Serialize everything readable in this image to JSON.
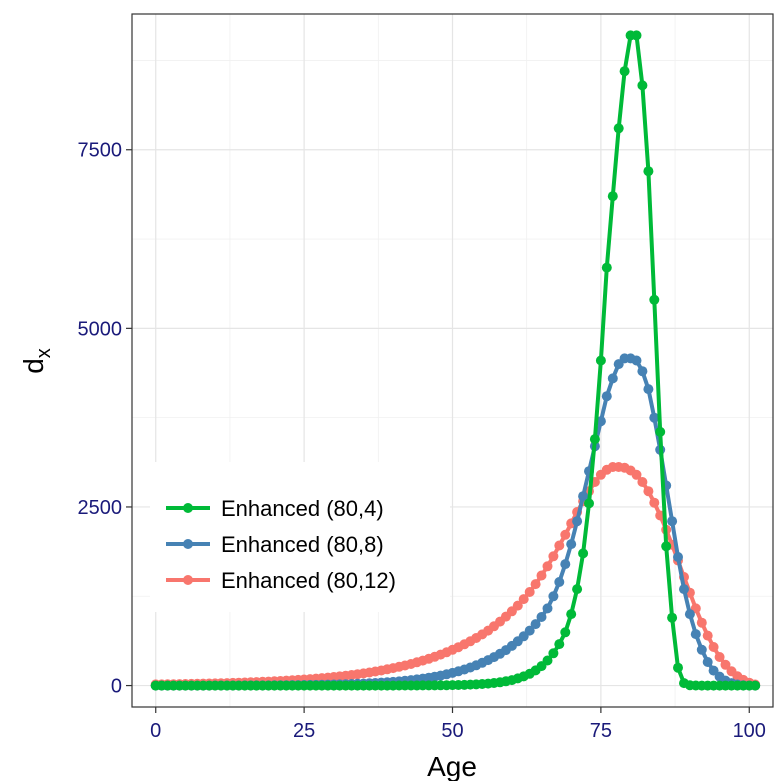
{
  "chart_data": {
    "type": "line",
    "xlabel": "Age",
    "ylabel": "d",
    "ylabel_subscript": "x",
    "xlim": [
      -4,
      104
    ],
    "ylim": [
      -300,
      9400
    ],
    "x_ticks": [
      0,
      25,
      50,
      75,
      100
    ],
    "x_tick_labels": [
      "0",
      "25",
      "50",
      "75",
      "100"
    ],
    "y_ticks": [
      0,
      2500,
      5000,
      7500
    ],
    "y_tick_labels": [
      "0",
      "2500",
      "5000",
      "7500"
    ],
    "grid": true,
    "legend_position": "bottom-left",
    "tick_label_color": "#1a1a7a",
    "series": [
      {
        "name": "Enhanced (80,4)",
        "color": "#00BA38",
        "mean": 80,
        "sd": 4,
        "x": [
          0,
          1,
          2,
          3,
          4,
          5,
          6,
          7,
          8,
          9,
          10,
          11,
          12,
          13,
          14,
          15,
          16,
          17,
          18,
          19,
          20,
          21,
          22,
          23,
          24,
          25,
          26,
          27,
          28,
          29,
          30,
          31,
          32,
          33,
          34,
          35,
          36,
          37,
          38,
          39,
          40,
          41,
          42,
          43,
          44,
          45,
          46,
          47,
          48,
          49,
          50,
          51,
          52,
          53,
          54,
          55,
          56,
          57,
          58,
          59,
          60,
          61,
          62,
          63,
          64,
          65,
          66,
          67,
          68,
          69,
          70,
          71,
          72,
          73,
          74,
          75,
          76,
          77,
          78,
          79,
          80,
          81,
          82,
          83,
          84,
          85,
          86,
          87,
          88,
          89,
          90,
          91,
          92,
          93,
          94,
          95,
          96,
          97,
          98,
          99,
          100,
          101
        ],
        "y": [
          0,
          0,
          0,
          0,
          0,
          0,
          0,
          0,
          0,
          0,
          0,
          0,
          0,
          0,
          0,
          0,
          0,
          0,
          0,
          0,
          0,
          0,
          0,
          0,
          0,
          0,
          0,
          0,
          0,
          0,
          0,
          0,
          0,
          0,
          0,
          0,
          0,
          0,
          0,
          0,
          0,
          1,
          1,
          1,
          1,
          2,
          2,
          3,
          4,
          5,
          6,
          8,
          10,
          13,
          17,
          22,
          28,
          36,
          46,
          60,
          77,
          100,
          128,
          165,
          212,
          273,
          351,
          452,
          580,
          745,
          1000,
          1350,
          1850,
          2550,
          3450,
          4550,
          5850,
          6850,
          7800,
          8600,
          9100,
          9100,
          8400,
          7200,
          5400,
          3550,
          1950,
          950,
          250,
          35,
          5,
          1,
          0,
          0,
          0,
          0,
          0,
          0,
          0,
          0,
          0,
          0
        ]
      },
      {
        "name": "Enhanced (80,8)",
        "color": "#4682B4",
        "mean": 80,
        "sd": 8,
        "x": [
          0,
          1,
          2,
          3,
          4,
          5,
          6,
          7,
          8,
          9,
          10,
          11,
          12,
          13,
          14,
          15,
          16,
          17,
          18,
          19,
          20,
          21,
          22,
          23,
          24,
          25,
          26,
          27,
          28,
          29,
          30,
          31,
          32,
          33,
          34,
          35,
          36,
          37,
          38,
          39,
          40,
          41,
          42,
          43,
          44,
          45,
          46,
          47,
          48,
          49,
          50,
          51,
          52,
          53,
          54,
          55,
          56,
          57,
          58,
          59,
          60,
          61,
          62,
          63,
          64,
          65,
          66,
          67,
          68,
          69,
          70,
          71,
          72,
          73,
          74,
          75,
          76,
          77,
          78,
          79,
          80,
          81,
          82,
          83,
          84,
          85,
          86,
          87,
          88,
          89,
          90,
          91,
          92,
          93,
          94,
          95,
          96,
          97,
          98,
          99,
          100,
          101
        ],
        "y": [
          0,
          0,
          0,
          0,
          0,
          0,
          0,
          0,
          0,
          0,
          1,
          1,
          1,
          1,
          1,
          2,
          2,
          2,
          3,
          3,
          4,
          4,
          5,
          6,
          7,
          8,
          9,
          10,
          12,
          13,
          15,
          17,
          19,
          22,
          25,
          28,
          32,
          36,
          41,
          46,
          52,
          59,
          67,
          76,
          86,
          97,
          110,
          124,
          140,
          158,
          178,
          200,
          225,
          253,
          284,
          318,
          356,
          398,
          445,
          497,
          555,
          620,
          690,
          770,
          860,
          960,
          1080,
          1250,
          1450,
          1700,
          1980,
          2300,
          2650,
          3000,
          3350,
          3700,
          4050,
          4300,
          4500,
          4580,
          4580,
          4550,
          4400,
          4150,
          3750,
          3300,
          2800,
          2300,
          1800,
          1350,
          1000,
          720,
          500,
          330,
          210,
          125,
          70,
          35,
          15,
          5,
          1,
          0
        ]
      },
      {
        "name": "Enhanced (80,12)",
        "color": "#F8766D",
        "mean": 80,
        "sd": 12,
        "x": [
          0,
          1,
          2,
          3,
          4,
          5,
          6,
          7,
          8,
          9,
          10,
          11,
          12,
          13,
          14,
          15,
          16,
          17,
          18,
          19,
          20,
          21,
          22,
          23,
          24,
          25,
          26,
          27,
          28,
          29,
          30,
          31,
          32,
          33,
          34,
          35,
          36,
          37,
          38,
          39,
          40,
          41,
          42,
          43,
          44,
          45,
          46,
          47,
          48,
          49,
          50,
          51,
          52,
          53,
          54,
          55,
          56,
          57,
          58,
          59,
          60,
          61,
          62,
          63,
          64,
          65,
          66,
          67,
          68,
          69,
          70,
          71,
          72,
          73,
          74,
          75,
          76,
          77,
          78,
          79,
          80,
          81,
          82,
          83,
          84,
          85,
          86,
          87,
          88,
          89,
          90,
          91,
          92,
          93,
          94,
          95,
          96,
          97,
          98,
          99,
          100,
          101
        ],
        "y": [
          16,
          17,
          18,
          19,
          21,
          22,
          24,
          25,
          27,
          29,
          31,
          33,
          35,
          38,
          40,
          43,
          46,
          49,
          53,
          56,
          60,
          64,
          69,
          74,
          79,
          85,
          91,
          97,
          104,
          112,
          120,
          129,
          138,
          148,
          159,
          171,
          183,
          197,
          211,
          227,
          244,
          262,
          281,
          302,
          325,
          349,
          375,
          403,
          433,
          466,
          500,
          537,
          577,
          620,
          666,
          716,
          770,
          830,
          895,
          965,
          1040,
          1120,
          1210,
          1310,
          1420,
          1540,
          1670,
          1810,
          1960,
          2110,
          2270,
          2430,
          2580,
          2720,
          2850,
          2950,
          3020,
          3060,
          3060,
          3050,
          3010,
          2950,
          2850,
          2720,
          2560,
          2380,
          2180,
          1970,
          1750,
          1520,
          1300,
          1080,
          880,
          700,
          540,
          400,
          290,
          200,
          130,
          80,
          40,
          15
        ]
      }
    ]
  }
}
